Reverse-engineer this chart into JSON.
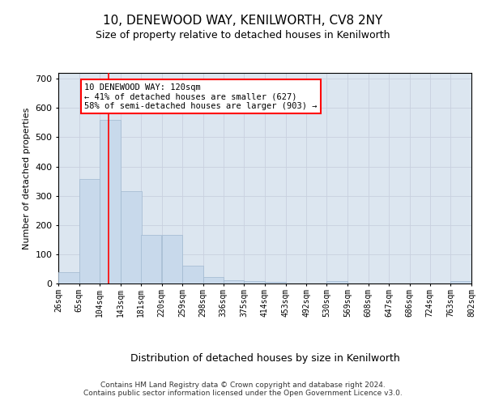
{
  "title": "10, DENEWOOD WAY, KENILWORTH, CV8 2NY",
  "subtitle": "Size of property relative to detached houses in Kenilworth",
  "xlabel": "Distribution of detached houses by size in Kenilworth",
  "ylabel": "Number of detached properties",
  "bar_color": "#c8d9eb",
  "bar_edge_color": "#a0b8d0",
  "grid_color": "#c8d0df",
  "background_color": "#dce6f0",
  "property_line_x": 120,
  "annotation_text": "10 DENEWOOD WAY: 120sqm\n← 41% of detached houses are smaller (627)\n58% of semi-detached houses are larger (903) →",
  "annotation_box_color": "white",
  "annotation_box_edge": "red",
  "vline_color": "red",
  "bins": [
    26,
    65,
    104,
    143,
    181,
    220,
    259,
    298,
    336,
    375,
    414,
    453,
    492,
    530,
    569,
    608,
    647,
    686,
    724,
    763,
    802
  ],
  "values": [
    40,
    357,
    560,
    315,
    165,
    165,
    60,
    22,
    10,
    7,
    5,
    0,
    0,
    7,
    0,
    0,
    0,
    0,
    0,
    7
  ],
  "ylim": [
    0,
    720
  ],
  "yticks": [
    0,
    100,
    200,
    300,
    400,
    500,
    600,
    700
  ],
  "footer": "Contains HM Land Registry data © Crown copyright and database right 2024.\nContains public sector information licensed under the Open Government Licence v3.0."
}
